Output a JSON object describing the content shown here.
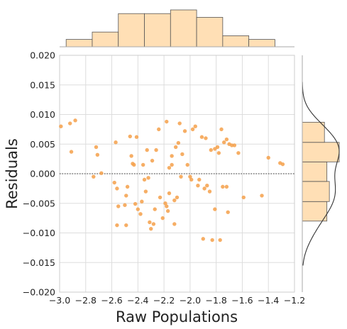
{
  "chart_data": {
    "type": "scatter",
    "kind": "jointplot (residual plot with marginal histograms)",
    "xlabel": "Raw Populations",
    "ylabel": "Residuals",
    "xlim": [
      -3.0,
      -1.2
    ],
    "ylim": [
      -0.02,
      0.02
    ],
    "x_ticks": [
      "−3.0",
      "−2.8",
      "−2.6",
      "−2.4",
      "−2.2",
      "−2.0",
      "−1.8",
      "−1.6",
      "−1.4",
      "−1.2"
    ],
    "y_ticks": [
      "0.020",
      "0.015",
      "0.010",
      "0.005",
      "0.000",
      "−0.005",
      "−0.010",
      "−0.015",
      "−0.020"
    ],
    "grid": true,
    "colors": {
      "points": "#f5a04a",
      "bars": "#ffdfb5",
      "bar_edge": "#555555",
      "kde": "#333333",
      "zero_line": "#333333"
    },
    "zero_reference_line": 0.0,
    "points": [
      [
        -2.99,
        0.008
      ],
      [
        -2.92,
        0.0085
      ],
      [
        -2.88,
        0.009
      ],
      [
        -2.91,
        0.0037
      ],
      [
        -2.72,
        0.0045
      ],
      [
        -2.71,
        0.0032
      ],
      [
        -2.68,
        0.0001
      ],
      [
        -2.74,
        -0.0005
      ],
      [
        -2.57,
        0.0053
      ],
      [
        -2.58,
        -0.0015
      ],
      [
        -2.56,
        -0.0025
      ],
      [
        -2.55,
        -0.0055
      ],
      [
        -2.5,
        -0.0053
      ],
      [
        -2.49,
        -0.0037
      ],
      [
        -2.48,
        -0.0022
      ],
      [
        -2.56,
        -0.0087
      ],
      [
        -2.49,
        -0.0087
      ],
      [
        -2.46,
        0.0063
      ],
      [
        -2.45,
        0.003
      ],
      [
        -2.44,
        0.0017
      ],
      [
        -2.43,
        0.0015
      ],
      [
        -2.42,
        -0.0051
      ],
      [
        -2.41,
        0.0062
      ],
      [
        -2.4,
        -0.006
      ],
      [
        -2.38,
        -0.0068
      ],
      [
        -2.37,
        -0.0047
      ],
      [
        -2.36,
        0.0015
      ],
      [
        -2.35,
        -0.001
      ],
      [
        -2.34,
        -0.003
      ],
      [
        -2.33,
        0.004
      ],
      [
        -2.32,
        -0.0007
      ],
      [
        -2.31,
        -0.0082
      ],
      [
        -2.3,
        -0.0093
      ],
      [
        -2.28,
        -0.0085
      ],
      [
        -2.29,
        0.0022
      ],
      [
        -2.27,
        -0.006
      ],
      [
        -2.26,
        0.004
      ],
      [
        -2.24,
        0.0075
      ],
      [
        -2.23,
        -0.004
      ],
      [
        -2.21,
        -0.0075
      ],
      [
        -2.19,
        -0.005
      ],
      [
        -2.18,
        -0.0055
      ],
      [
        -2.18,
        0.0088
      ],
      [
        -2.17,
        -0.0063
      ],
      [
        -2.16,
        0.001
      ],
      [
        -2.16,
        -0.0033
      ],
      [
        -2.14,
        0.0015
      ],
      [
        -2.14,
        0.003
      ],
      [
        -2.12,
        -0.0045
      ],
      [
        -2.12,
        -0.0085
      ],
      [
        -2.11,
        0.0045
      ],
      [
        -2.1,
        -0.004
      ],
      [
        -2.08,
        0.0085
      ],
      [
        -2.07,
        -0.0005
      ],
      [
        -2.06,
        0.0033
      ],
      [
        -2.04,
        0.0072
      ],
      [
        -2.02,
        0.0015
      ],
      [
        -2.0,
        -0.0005
      ],
      [
        -1.99,
        -0.001
      ],
      [
        -1.98,
        0.0075
      ],
      [
        -1.94,
        -0.002
      ],
      [
        -1.93,
        -0.001
      ],
      [
        -1.91,
        0.0062
      ],
      [
        -1.9,
        -0.011
      ],
      [
        -1.89,
        -0.0025
      ],
      [
        -1.88,
        0.006
      ],
      [
        -1.87,
        -0.002
      ],
      [
        -1.85,
        -0.003
      ],
      [
        -1.84,
        0.004
      ],
      [
        -1.83,
        -0.0112
      ],
      [
        -1.81,
        -0.006
      ],
      [
        -1.79,
        0.0045
      ],
      [
        -1.78,
        0.0035
      ],
      [
        -1.77,
        -0.0112
      ],
      [
        -1.76,
        0.0075
      ],
      [
        -1.75,
        -0.0022
      ],
      [
        -1.74,
        0.0053
      ],
      [
        -1.72,
        0.0058
      ],
      [
        -1.71,
        -0.0065
      ],
      [
        -1.7,
        0.005
      ],
      [
        -1.68,
        0.0048
      ],
      [
        -1.66,
        0.0048
      ],
      [
        -1.63,
        0.0035
      ],
      [
        -1.59,
        -0.004
      ],
      [
        -1.72,
        -0.0022
      ],
      [
        -1.45,
        -0.0037
      ],
      [
        -1.4,
        0.0027
      ],
      [
        -1.31,
        0.0018
      ],
      [
        -1.29,
        0.0016
      ],
      [
        -1.96,
        0.008
      ],
      [
        -2.09,
        0.0052
      ],
      [
        -1.81,
        0.0042
      ]
    ],
    "marginal_x": {
      "bin_edges": [
        -2.95,
        -2.75,
        -2.55,
        -2.35,
        -2.15,
        -1.95,
        -1.75,
        -1.55,
        -1.35
      ],
      "counts": [
        2,
        4,
        9,
        9,
        10,
        8,
        3,
        2
      ]
    },
    "marginal_y": {
      "bin_edges": [
        -0.008,
        -0.0047,
        -0.0013,
        0.002,
        0.0053,
        0.0087
      ],
      "counts": [
        10,
        11,
        10,
        15,
        9
      ],
      "kde": true
    }
  }
}
